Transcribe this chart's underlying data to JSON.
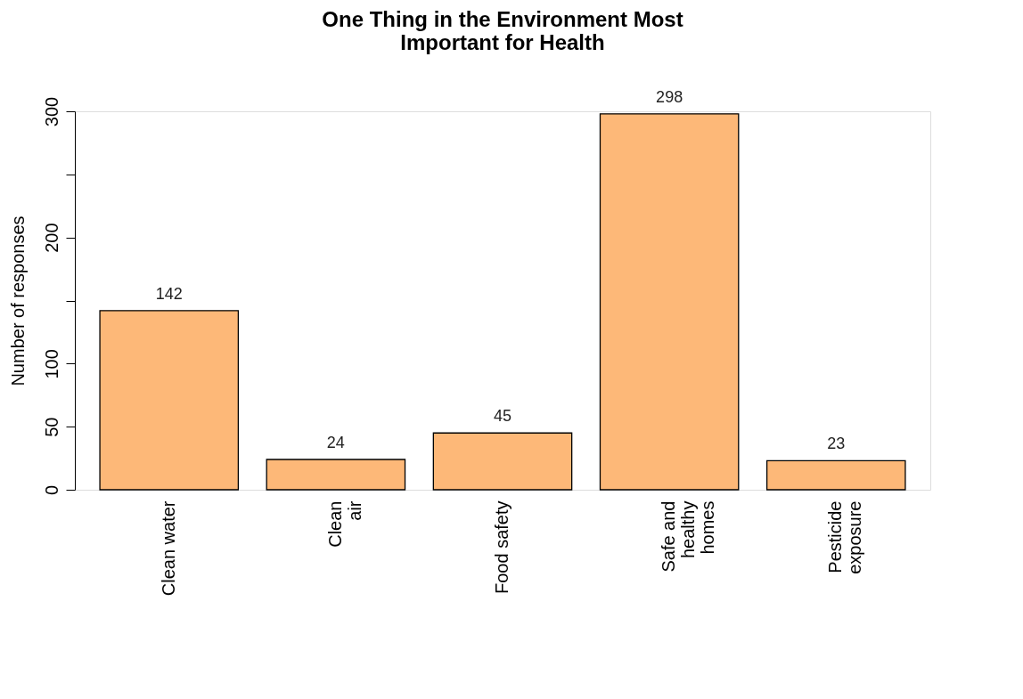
{
  "chart_data": {
    "type": "bar",
    "title": "One Thing in the Environment Most\nImportant for Health",
    "ylabel": "Number of responses",
    "categories": [
      "Clean water",
      "Clean\nair",
      "Food safety",
      "Safe and\nhealthy\nhomes",
      "Pesticide\nexposure"
    ],
    "values": [
      142,
      24,
      45,
      298,
      23
    ],
    "color": "#fdb878",
    "ylim": [
      0,
      300
    ],
    "yticks": [
      0,
      50,
      100,
      {
        "value": 150,
        "label": null
      },
      200,
      {
        "value": 250,
        "label": null
      },
      300
    ],
    "data_labels": true,
    "grid": false
  }
}
